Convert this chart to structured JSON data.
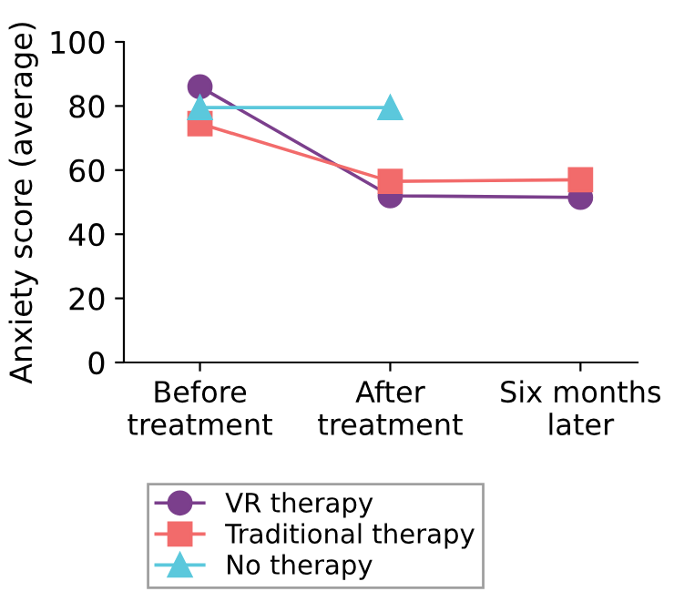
{
  "chart_data": {
    "type": "line",
    "ylabel": "Anxiety score (average)",
    "categories": [
      "Before\ntreatment",
      "After\ntreatment",
      "Six months\nlater"
    ],
    "series": [
      {
        "name": "VR therapy",
        "color": "#7b3f8c",
        "marker": "circle",
        "values": [
          86,
          52,
          51.5
        ]
      },
      {
        "name": "Traditional therapy",
        "color": "#f26b6b",
        "marker": "square",
        "values": [
          74.5,
          56.5,
          57
        ]
      },
      {
        "name": "No therapy",
        "color": "#5bc8dc",
        "marker": "triangle",
        "values": [
          79.5,
          79.5,
          null
        ]
      }
    ],
    "ylim": [
      0,
      100
    ],
    "yticks": [
      0,
      20,
      40,
      60,
      80,
      100
    ],
    "grid": false,
    "legend": "bottom"
  }
}
